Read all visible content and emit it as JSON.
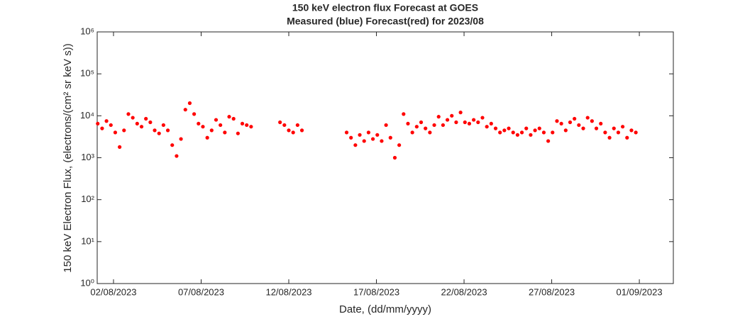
{
  "chart_data": {
    "type": "scatter",
    "title": "150 keV electron flux Forecast at GOES",
    "subtitle": "Measured (blue) Forecast(red) for 2023/08",
    "x_label": "Date, (dd/mm/yyyy)",
    "y_label": "150 keV Electron Flux, (electrons/(cm² sr keV s))",
    "color": "#ff0000",
    "log_y": true,
    "xlim": [
      1.07,
      33.94
    ],
    "xticks": [
      {
        "value": 2,
        "label": "02/08/2023"
      },
      {
        "value": 7,
        "label": "07/08/2023"
      },
      {
        "value": 12,
        "label": "12/08/2023"
      },
      {
        "value": 17,
        "label": "17/08/2023"
      },
      {
        "value": 22,
        "label": "22/08/2023"
      },
      {
        "value": 27,
        "label": "27/08/2023"
      },
      {
        "value": 32,
        "label": "01/09/2023"
      }
    ],
    "ylim": [
      1,
      1000000
    ],
    "yticks": [
      {
        "value": 1,
        "label": "10⁰"
      },
      {
        "value": 10,
        "label": "10¹"
      },
      {
        "value": 100,
        "label": "10²"
      },
      {
        "value": 1000,
        "label": "10³"
      },
      {
        "value": 10000,
        "label": "10⁴"
      },
      {
        "value": 100000,
        "label": "10⁵"
      },
      {
        "value": 1000000,
        "label": "10⁶"
      }
    ],
    "x": [
      1.1,
      1.35,
      1.6,
      1.85,
      2.1,
      2.35,
      2.6,
      2.85,
      3.1,
      3.35,
      3.6,
      3.85,
      4.1,
      4.35,
      4.6,
      4.85,
      5.1,
      5.35,
      5.6,
      5.85,
      6.1,
      6.35,
      6.6,
      6.85,
      7.1,
      7.35,
      7.6,
      7.85,
      8.1,
      8.35,
      8.6,
      8.85,
      9.1,
      9.35,
      9.6,
      9.85,
      11.5,
      11.75,
      12.0,
      12.25,
      12.5,
      12.75,
      15.3,
      15.55,
      15.8,
      16.05,
      16.3,
      16.55,
      16.8,
      17.05,
      17.3,
      17.55,
      17.8,
      18.05,
      18.3,
      18.55,
      18.8,
      19.05,
      19.3,
      19.55,
      19.8,
      20.05,
      20.3,
      20.55,
      20.8,
      21.05,
      21.3,
      21.55,
      21.8,
      22.05,
      22.3,
      22.55,
      22.8,
      23.05,
      23.3,
      23.55,
      23.8,
      24.05,
      24.3,
      24.55,
      24.8,
      25.05,
      25.3,
      25.55,
      25.8,
      26.05,
      26.3,
      26.55,
      26.8,
      27.05,
      27.3,
      27.55,
      27.8,
      28.05,
      28.3,
      28.55,
      28.8,
      29.05,
      29.3,
      29.55,
      29.8,
      30.05,
      30.3,
      30.55,
      30.8,
      31.05,
      31.3,
      31.55,
      31.8
    ],
    "values": [
      6500,
      5000,
      7500,
      6000,
      4000,
      1800,
      4500,
      11000,
      9000,
      6500,
      5500,
      8500,
      7000,
      4500,
      3800,
      6000,
      4500,
      2000,
      1100,
      2800,
      14000,
      20000,
      11000,
      6500,
      5500,
      3000,
      4500,
      8000,
      6000,
      4000,
      9500,
      8500,
      3800,
      6500,
      6000,
      5500,
      7000,
      6000,
      4500,
      4000,
      6000,
      4500,
      4000,
      3000,
      2000,
      3500,
      2500,
      4000,
      2800,
      3500,
      2500,
      6000,
      3000,
      1000,
      2000,
      11000,
      6500,
      4000,
      5500,
      7000,
      5000,
      4000,
      6000,
      9500,
      6000,
      8000,
      10000,
      7000,
      12000,
      7000,
      6500,
      8000,
      7000,
      9000,
      5500,
      6500,
      5000,
      4000,
      4500,
      5000,
      4000,
      3500,
      4000,
      5000,
      3500,
      4500,
      5000,
      4000,
      2500,
      4000,
      7500,
      6500,
      4500,
      7000,
      8500,
      6000,
      5000,
      9000,
      7500,
      5000,
      6500,
      4000,
      3000,
      5000,
      4000,
      5500,
      3000,
      4500,
      4000
    ]
  }
}
